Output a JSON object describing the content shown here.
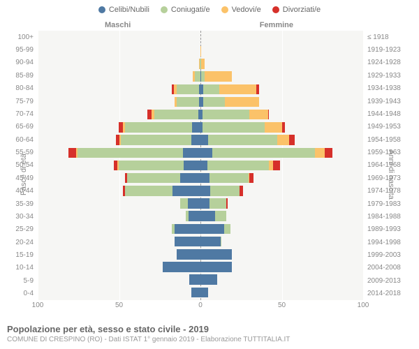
{
  "legend": [
    {
      "label": "Celibi/Nubili",
      "color": "#4f79a3"
    },
    {
      "label": "Coniugati/e",
      "color": "#b6d09b"
    },
    {
      "label": "Vedovi/e",
      "color": "#fbc269"
    },
    {
      "label": "Divorziati/e",
      "color": "#d6302a"
    }
  ],
  "header_male": "Maschi",
  "header_female": "Femmine",
  "y_left_title": "Fasce di età",
  "y_right_title": "Anni di nascita",
  "title": "Popolazione per età, sesso e stato civile - 2019",
  "subtitle": "COMUNE DI CRESPINO (RO) - Dati ISTAT 1° gennaio 2019 - Elaborazione TUTTITALIA.IT",
  "x_max": 100,
  "x_ticks": [
    100,
    50,
    0,
    50,
    100
  ],
  "background_color": "#f6f6f4",
  "grid_color": "#ffffff",
  "bars": [
    {
      "age": "100+",
      "year": "≤ 1918",
      "m": [
        0,
        0,
        0,
        0
      ],
      "f": [
        0,
        0,
        1,
        0
      ]
    },
    {
      "age": "95-99",
      "year": "1919-1923",
      "m": [
        0,
        0,
        2,
        0
      ],
      "f": [
        0,
        0,
        3,
        0
      ]
    },
    {
      "age": "90-94",
      "year": "1924-1928",
      "m": [
        1,
        2,
        6,
        0
      ],
      "f": [
        1,
        1,
        14,
        0
      ]
    },
    {
      "age": "85-89",
      "year": "1929-1933",
      "m": [
        1,
        15,
        6,
        0
      ],
      "f": [
        1,
        5,
        38,
        0
      ]
    },
    {
      "age": "80-84",
      "year": "1934-1938",
      "m": [
        2,
        33,
        4,
        3
      ],
      "f": [
        3,
        16,
        38,
        3
      ]
    },
    {
      "age": "75-79",
      "year": "1939-1943",
      "m": [
        2,
        35,
        3,
        0
      ],
      "f": [
        3,
        22,
        35,
        0
      ]
    },
    {
      "age": "70-74",
      "year": "1944-1948",
      "m": [
        2,
        48,
        3,
        4
      ],
      "f": [
        2,
        44,
        18,
        1
      ]
    },
    {
      "age": "65-69",
      "year": "1949-1953",
      "m": [
        7,
        58,
        2,
        4
      ],
      "f": [
        2,
        53,
        15,
        2
      ]
    },
    {
      "age": "60-64",
      "year": "1954-1958",
      "m": [
        8,
        60,
        1,
        3
      ],
      "f": [
        6,
        56,
        10,
        4
      ]
    },
    {
      "age": "55-59",
      "year": "1959-1963",
      "m": [
        12,
        72,
        1,
        5
      ],
      "f": [
        8,
        70,
        7,
        5
      ]
    },
    {
      "age": "50-54",
      "year": "1964-1968",
      "m": [
        14,
        55,
        1,
        3
      ],
      "f": [
        6,
        54,
        4,
        6
      ]
    },
    {
      "age": "45-49",
      "year": "1969-1973",
      "m": [
        18,
        48,
        0,
        2
      ],
      "f": [
        10,
        42,
        1,
        4
      ]
    },
    {
      "age": "40-44",
      "year": "1974-1978",
      "m": [
        25,
        42,
        0,
        2
      ],
      "f": [
        12,
        35,
        0,
        4
      ]
    },
    {
      "age": "35-39",
      "year": "1979-1983",
      "m": [
        22,
        13,
        0,
        0
      ],
      "f": [
        14,
        25,
        0,
        2
      ]
    },
    {
      "age": "30-34",
      "year": "1984-1988",
      "m": [
        24,
        6,
        0,
        0
      ],
      "f": [
        22,
        18,
        0,
        0
      ]
    },
    {
      "age": "25-29",
      "year": "1989-1993",
      "m": [
        38,
        4,
        0,
        0
      ],
      "f": [
        34,
        9,
        0,
        0
      ]
    },
    {
      "age": "20-24",
      "year": "1994-1998",
      "m": [
        40,
        0,
        0,
        0
      ],
      "f": [
        35,
        1,
        0,
        0
      ]
    },
    {
      "age": "15-19",
      "year": "1999-2003",
      "m": [
        38,
        0,
        0,
        0
      ],
      "f": [
        44,
        0,
        0,
        0
      ]
    },
    {
      "age": "10-14",
      "year": "2004-2008",
      "m": [
        48,
        0,
        0,
        0
      ],
      "f": [
        44,
        0,
        0,
        0
      ]
    },
    {
      "age": "5-9",
      "year": "2009-2013",
      "m": [
        26,
        0,
        0,
        0
      ],
      "f": [
        32,
        0,
        0,
        0
      ]
    },
    {
      "age": "0-4",
      "year": "2014-2018",
      "m": [
        24,
        0,
        0,
        0
      ],
      "f": [
        22,
        0,
        0,
        0
      ]
    }
  ]
}
